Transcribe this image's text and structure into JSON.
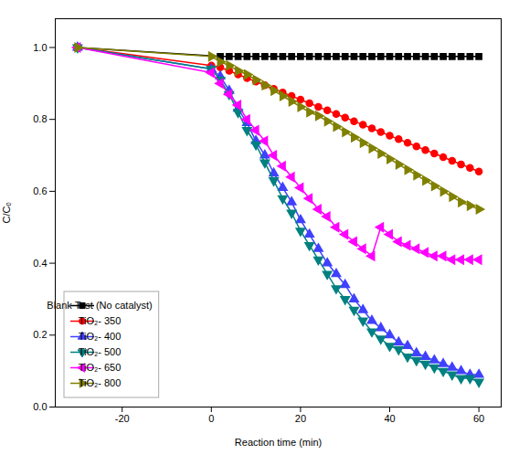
{
  "chart_data": {
    "type": "line",
    "xlabel": "Reaction time (min)",
    "ylabel": "C/Cₒ",
    "xlim": [
      -35,
      65
    ],
    "ylim": [
      0.0,
      1.08
    ],
    "xticks": [
      -20,
      0,
      20,
      40,
      60
    ],
    "yticks": [
      {
        "value": 0,
        "label": "0.0"
      },
      0.2,
      0.4,
      0.6,
      0.8,
      {
        "value": 1,
        "label": "1.0"
      }
    ],
    "grid": false,
    "legend": "lower left",
    "series": [
      {
        "name": "Blank Test (No catalyst)",
        "color": "#000000",
        "marker": "square",
        "x": [
          -30,
          2,
          4,
          6,
          8,
          10,
          12,
          14,
          16,
          18,
          20,
          22,
          24,
          26,
          28,
          30,
          32,
          34,
          36,
          38,
          40,
          42,
          44,
          46,
          48,
          50,
          52,
          54,
          56,
          58,
          60
        ],
        "values": [
          1.0,
          0.975,
          0.975,
          0.975,
          0.975,
          0.975,
          0.975,
          0.975,
          0.975,
          0.975,
          0.975,
          0.975,
          0.975,
          0.975,
          0.975,
          0.975,
          0.975,
          0.975,
          0.975,
          0.975,
          0.975,
          0.975,
          0.975,
          0.975,
          0.975,
          0.975,
          0.975,
          0.975,
          0.975,
          0.975,
          0.975
        ]
      },
      {
        "name": "TiO₂- 350",
        "color": "#ff0000",
        "marker": "circle",
        "x": [
          -30,
          0,
          2,
          4,
          6,
          8,
          10,
          12,
          14,
          16,
          18,
          20,
          22,
          24,
          26,
          28,
          30,
          32,
          34,
          36,
          38,
          40,
          42,
          44,
          46,
          48,
          50,
          52,
          54,
          56,
          58,
          60
        ],
        "values": [
          1.0,
          0.95,
          0.945,
          0.935,
          0.925,
          0.915,
          0.905,
          0.895,
          0.885,
          0.875,
          0.865,
          0.855,
          0.845,
          0.835,
          0.825,
          0.815,
          0.805,
          0.795,
          0.785,
          0.775,
          0.765,
          0.755,
          0.745,
          0.735,
          0.725,
          0.715,
          0.705,
          0.695,
          0.685,
          0.675,
          0.665,
          0.655
        ]
      },
      {
        "name": "TiO₂- 400",
        "color": "#4040ff",
        "marker": "triangle-up",
        "x": [
          -30,
          0,
          2,
          4,
          6,
          8,
          10,
          12,
          14,
          16,
          18,
          20,
          22,
          24,
          26,
          28,
          30,
          32,
          34,
          36,
          38,
          40,
          42,
          44,
          46,
          48,
          50,
          52,
          54,
          56,
          58,
          60
        ],
        "values": [
          1.0,
          0.94,
          0.92,
          0.88,
          0.83,
          0.79,
          0.74,
          0.7,
          0.65,
          0.61,
          0.57,
          0.52,
          0.48,
          0.44,
          0.4,
          0.37,
          0.34,
          0.3,
          0.27,
          0.24,
          0.22,
          0.2,
          0.18,
          0.17,
          0.15,
          0.14,
          0.13,
          0.12,
          0.11,
          0.1,
          0.09,
          0.09
        ]
      },
      {
        "name": "TiO₂- 500",
        "color": "#008080",
        "marker": "triangle-down",
        "x": [
          -30,
          0,
          2,
          4,
          6,
          8,
          10,
          12,
          14,
          16,
          18,
          20,
          22,
          24,
          26,
          28,
          30,
          32,
          34,
          36,
          38,
          40,
          42,
          44,
          46,
          48,
          50,
          52,
          54,
          56,
          58,
          60
        ],
        "values": [
          1.0,
          0.94,
          0.91,
          0.87,
          0.82,
          0.77,
          0.73,
          0.68,
          0.63,
          0.58,
          0.54,
          0.49,
          0.45,
          0.41,
          0.37,
          0.33,
          0.3,
          0.27,
          0.24,
          0.21,
          0.19,
          0.17,
          0.16,
          0.14,
          0.13,
          0.12,
          0.11,
          0.1,
          0.09,
          0.08,
          0.08,
          0.07
        ]
      },
      {
        "name": "TiO₂- 650",
        "color": "#ff00ff",
        "marker": "triangle-left",
        "x": [
          -30,
          0,
          2,
          4,
          6,
          8,
          10,
          12,
          14,
          16,
          18,
          20,
          22,
          24,
          26,
          28,
          30,
          32,
          34,
          36,
          38,
          40,
          42,
          44,
          46,
          48,
          50,
          52,
          54,
          56,
          58,
          60
        ],
        "values": [
          1.0,
          0.93,
          0.9,
          0.87,
          0.84,
          0.8,
          0.77,
          0.74,
          0.7,
          0.67,
          0.64,
          0.61,
          0.58,
          0.55,
          0.53,
          0.5,
          0.48,
          0.46,
          0.44,
          0.42,
          0.5,
          0.48,
          0.46,
          0.45,
          0.44,
          0.43,
          0.42,
          0.42,
          0.41,
          0.41,
          0.41,
          0.41
        ]
      },
      {
        "name": "TiO₂- 800",
        "color": "#808000",
        "marker": "triangle-right",
        "x": [
          -30,
          0,
          2,
          4,
          6,
          8,
          10,
          12,
          14,
          16,
          18,
          20,
          22,
          24,
          26,
          28,
          30,
          32,
          34,
          36,
          38,
          40,
          42,
          44,
          46,
          48,
          50,
          52,
          54,
          56,
          58,
          60
        ],
        "values": [
          1.0,
          0.975,
          0.96,
          0.95,
          0.935,
          0.925,
          0.91,
          0.895,
          0.88,
          0.865,
          0.85,
          0.835,
          0.82,
          0.81,
          0.795,
          0.78,
          0.765,
          0.75,
          0.735,
          0.72,
          0.705,
          0.69,
          0.675,
          0.66,
          0.645,
          0.63,
          0.615,
          0.6,
          0.585,
          0.57,
          0.56,
          0.55
        ]
      }
    ]
  }
}
